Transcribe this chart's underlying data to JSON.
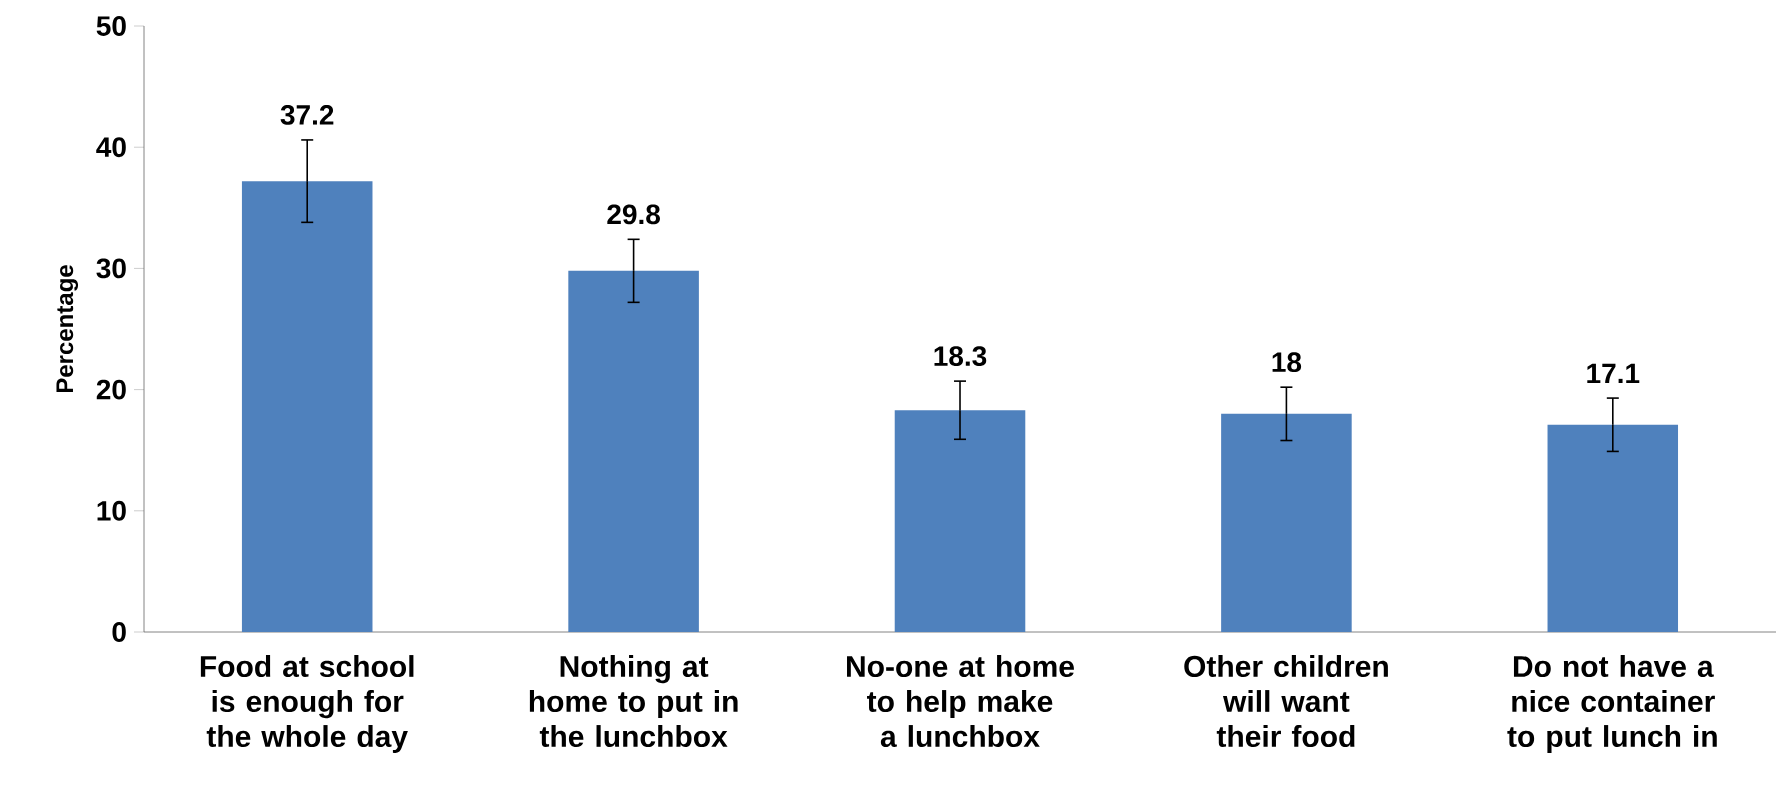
{
  "chart_data": {
    "type": "bar",
    "ylabel": "Percentage",
    "categories": [
      "Food at school is enough for the whole day",
      "Nothing at home to put in the lunchbox",
      "No-one at home to help make a lunchbox",
      "Other children will want their food",
      "Do not have a nice container to put lunch in"
    ],
    "values": [
      37.2,
      29.8,
      18.3,
      18,
      17.1
    ],
    "errors": [
      3.4,
      2.6,
      2.4,
      2.2,
      2.2
    ],
    "color": "#4f81bd",
    "ylim": [
      0,
      50
    ],
    "yticks": [
      0,
      10,
      20,
      30,
      40,
      50
    ],
    "grid": false,
    "data_labels": true
  }
}
